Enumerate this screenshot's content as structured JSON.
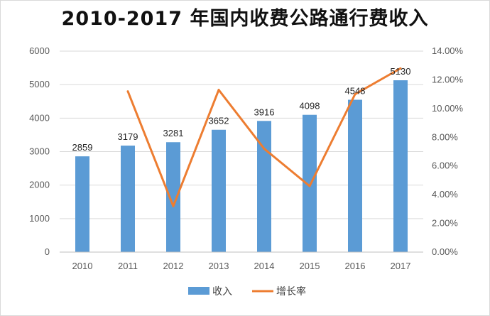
{
  "chart_data": {
    "type": "bar",
    "title": "2010-2017 年国内收费公路通行费收入",
    "categories": [
      "2010",
      "2011",
      "2012",
      "2013",
      "2014",
      "2015",
      "2016",
      "2017"
    ],
    "series": [
      {
        "name": "收入",
        "type": "bar",
        "axis": "left",
        "color": "#5b9bd5",
        "values": [
          2859,
          3179,
          3281,
          3652,
          3916,
          4098,
          4548,
          5130
        ],
        "data_labels": [
          "2859",
          "3179",
          "3281",
          "3652",
          "3916",
          "4098",
          "4548",
          "5130"
        ]
      },
      {
        "name": "增长率",
        "type": "line",
        "axis": "right",
        "color": "#ed7d31",
        "values": [
          null,
          0.112,
          0.032,
          0.113,
          0.072,
          0.046,
          0.11,
          0.128
        ]
      }
    ],
    "y_left": {
      "min": 0,
      "max": 6000,
      "ticks": [
        "0",
        "1000",
        "2000",
        "3000",
        "4000",
        "5000",
        "6000"
      ]
    },
    "y_right": {
      "min": 0,
      "max": 0.14,
      "ticks": [
        "0.00%",
        "2.00%",
        "4.00%",
        "6.00%",
        "8.00%",
        "10.00%",
        "12.00%",
        "14.00%"
      ]
    },
    "grid": true,
    "legend_position": "bottom"
  }
}
